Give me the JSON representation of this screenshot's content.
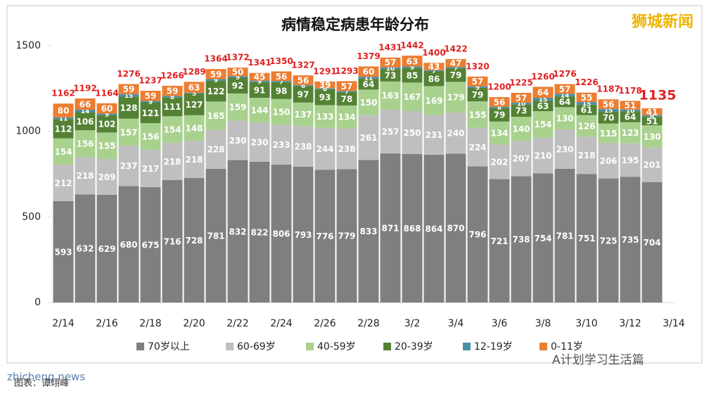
{
  "chart_data": {
    "type": "stacked-bar",
    "title": "病情稳定病患年龄分布",
    "categories": [
      "2/14",
      null,
      "2/16",
      null,
      "2/18",
      null,
      "2/20",
      null,
      "2/22",
      null,
      "2/24",
      null,
      "2/26",
      null,
      "2/28",
      null,
      "3/2",
      null,
      "3/4",
      null,
      "3/6",
      null,
      "3/8",
      null,
      "3/10",
      null,
      "3/12",
      null,
      "3/14"
    ],
    "series": [
      {
        "name": "70岁以上",
        "color": "#7f7f7f",
        "values": [
          593,
          632,
          629,
          680,
          675,
          716,
          728,
          781,
          832,
          822,
          806,
          793,
          776,
          779,
          833,
          871,
          868,
          864,
          870,
          796,
          721,
          738,
          754,
          781,
          751,
          725,
          735,
          704,
          null
        ]
      },
      {
        "name": "60-69岁",
        "color": "#bfbfbf",
        "values": [
          212,
          218,
          209,
          237,
          217,
          218,
          218,
          228,
          230,
          230,
          233,
          238,
          244,
          238,
          261,
          257,
          250,
          231,
          240,
          224,
          202,
          207,
          210,
          230,
          218,
          206,
          195,
          201,
          null
        ]
      },
      {
        "name": "40-59岁",
        "color": "#a9d18e",
        "values": [
          154,
          156,
          155,
          157,
          156,
          154,
          148,
          165,
          159,
          144,
          150,
          137,
          133,
          134,
          150,
          163,
          167,
          169,
          179,
          155,
          134,
          140,
          154,
          130,
          126,
          115,
          123,
          130,
          null
        ]
      },
      {
        "name": "20-39岁",
        "color": "#548235",
        "values": [
          112,
          106,
          102,
          128,
          121,
          111,
          127,
          122,
          92,
          91,
          98,
          97,
          93,
          78,
          64,
          73,
          85,
          86,
          79,
          79,
          79,
          73,
          63,
          64,
          61,
          70,
          64,
          51,
          null
        ]
      },
      {
        "name": "12-19岁",
        "color": "#4a90a4",
        "values": [
          11,
          14,
          9,
          15,
          9,
          8,
          5,
          9,
          9,
          9,
          7,
          6,
          6,
          7,
          11,
          10,
          9,
          7,
          7,
          9,
          8,
          10,
          15,
          14,
          15,
          15,
          10,
          8,
          null
        ]
      },
      {
        "name": "0-11岁",
        "color": "#ed7d31",
        "values": [
          80,
          66,
          60,
          59,
          59,
          59,
          63,
          59,
          50,
          45,
          56,
          56,
          39,
          57,
          60,
          57,
          63,
          43,
          47,
          57,
          56,
          57,
          64,
          57,
          55,
          56,
          51,
          41,
          null
        ]
      }
    ],
    "totals": [
      1162,
      1192,
      1164,
      1276,
      1237,
      1266,
      1289,
      1364,
      1372,
      1341,
      1350,
      1327,
      1291,
      1293,
      1379,
      1431,
      1442,
      1400,
      1422,
      1320,
      1200,
      1225,
      1260,
      1276,
      1226,
      1187,
      1178,
      1135,
      null
    ],
    "ylim": [
      0,
      1500
    ],
    "yticks": [
      0,
      500,
      1000,
      1500
    ],
    "grid": false,
    "watermark": "狮城新闻",
    "site": "zhicheng.news",
    "account": "A计划学习生活篇",
    "credit": "图表：谭翊峰"
  }
}
